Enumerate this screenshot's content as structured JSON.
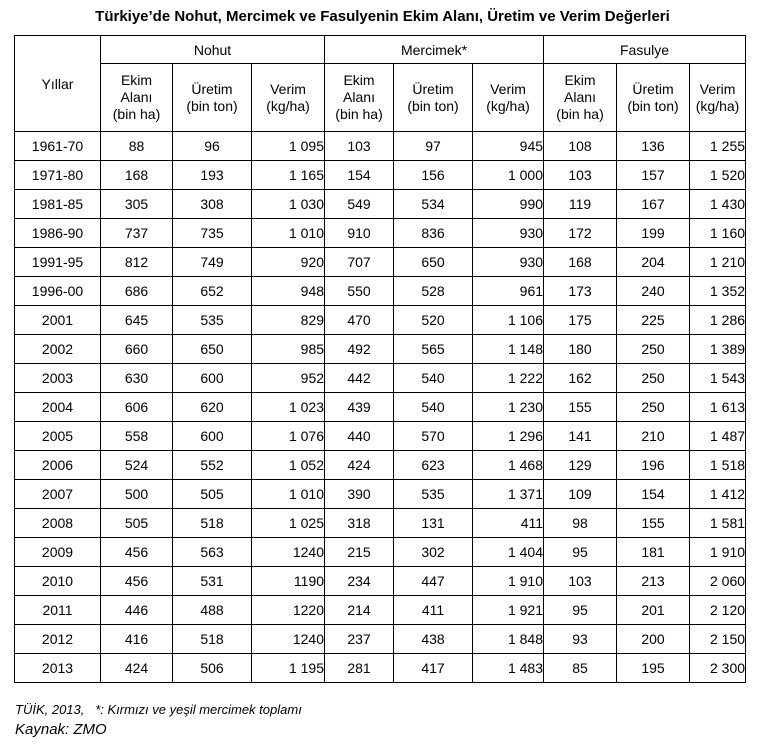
{
  "title": "Türkiye’de Nohut, Mercimek ve Fasulyenin Ekim Alanı, Üretim ve Verim Değerleri",
  "headers": {
    "year": "Yıllar",
    "groups": [
      "Nohut",
      "Mercimek*",
      "Fasulye"
    ],
    "sub": {
      "area": [
        "Ekim",
        "Alanı",
        "(bin ha)"
      ],
      "production": [
        "Üretim",
        "(bin ton)"
      ],
      "yield": [
        "Verim",
        "(kg/ha)"
      ]
    }
  },
  "rows": [
    {
      "year": "1961-70",
      "cells": [
        "88",
        "96",
        "1 095",
        "103",
        "97",
        "945",
        "108",
        "136",
        "1 255"
      ]
    },
    {
      "year": "1971-80",
      "cells": [
        "168",
        "193",
        "1 165",
        "154",
        "156",
        "1 000",
        "103",
        "157",
        "1 520"
      ]
    },
    {
      "year": "1981-85",
      "cells": [
        "305",
        "308",
        "1 030",
        "549",
        "534",
        "990",
        "119",
        "167",
        "1 430"
      ]
    },
    {
      "year": "1986-90",
      "cells": [
        "737",
        "735",
        "1 010",
        "910",
        "836",
        "930",
        "172",
        "199",
        "1 160"
      ]
    },
    {
      "year": "1991-95",
      "cells": [
        "812",
        "749",
        "920",
        "707",
        "650",
        "930",
        "168",
        "204",
        "1 210"
      ]
    },
    {
      "year": "1996-00",
      "cells": [
        "686",
        "652",
        "948",
        "550",
        "528",
        "961",
        "173",
        "240",
        "1 352"
      ]
    },
    {
      "year": "2001",
      "cells": [
        "645",
        "535",
        "829",
        "470",
        "520",
        "1 106",
        "175",
        "225",
        "1 286"
      ]
    },
    {
      "year": "2002",
      "cells": [
        "660",
        "650",
        "985",
        "492",
        "565",
        "1 148",
        "180",
        "250",
        "1 389"
      ]
    },
    {
      "year": "2003",
      "cells": [
        "630",
        "600",
        "952",
        "442",
        "540",
        "1 222",
        "162",
        "250",
        "1 543"
      ]
    },
    {
      "year": "2004",
      "cells": [
        "606",
        "620",
        "1 023",
        "439",
        "540",
        "1 230",
        "155",
        "250",
        "1 613"
      ]
    },
    {
      "year": "2005",
      "cells": [
        "558",
        "600",
        "1 076",
        "440",
        "570",
        "1 296",
        "141",
        "210",
        "1 487"
      ]
    },
    {
      "year": "2006",
      "cells": [
        "524",
        "552",
        "1 052",
        "424",
        "623",
        "1 468",
        "129",
        "196",
        "1 518"
      ]
    },
    {
      "year": "2007",
      "cells": [
        "500",
        "505",
        "1 010",
        "390",
        "535",
        "1 371",
        "109",
        "154",
        "1 412"
      ]
    },
    {
      "year": "2008",
      "cells": [
        "505",
        "518",
        "1 025",
        "318",
        "131",
        "411",
        "98",
        "155",
        "1 581"
      ]
    },
    {
      "year": "2009",
      "cells": [
        "456",
        "563",
        "1240",
        "215",
        "302",
        "1 404",
        "95",
        "181",
        "1 910"
      ]
    },
    {
      "year": "2010",
      "cells": [
        "456",
        "531",
        "1190",
        "234",
        "447",
        "1 910",
        "103",
        "213",
        "2 060"
      ]
    },
    {
      "year": "2011",
      "cells": [
        "446",
        "488",
        "1220",
        "214",
        "411",
        "1 921",
        "95",
        "201",
        "2 120"
      ]
    },
    {
      "year": "2012",
      "cells": [
        "416",
        "518",
        "1240",
        "237",
        "438",
        "1 848",
        "93",
        "200",
        "2 150"
      ]
    },
    {
      "year": "2013",
      "cells": [
        "424",
        "506",
        "1 195",
        "281",
        "417",
        "1 483",
        "85",
        "195",
        "2 300"
      ]
    }
  ],
  "footnote": "TÜİK, 2013,   *: Kırmızı ve yeşil mercimek toplamı",
  "source": "Kaynak: ZMO"
}
